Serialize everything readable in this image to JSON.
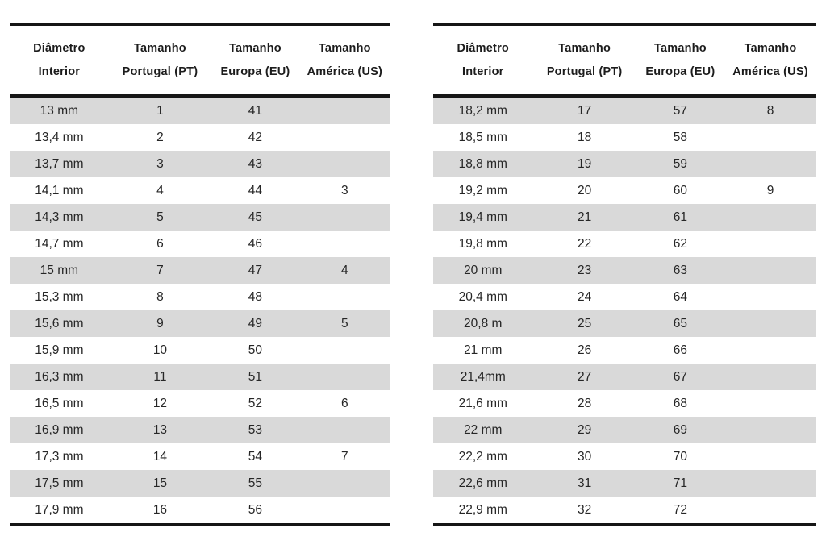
{
  "colors": {
    "stripe": "#d9d9d9",
    "rule": "#161616",
    "text": "#262626",
    "background": "#ffffff"
  },
  "left_table": {
    "headers": [
      {
        "line1": "Diâmetro",
        "line2": "Interior"
      },
      {
        "line1": "Tamanho",
        "line2": "Portugal (PT)"
      },
      {
        "line1": "Tamanho",
        "line2": "Europa (EU)"
      },
      {
        "line1": "Tamanho",
        "line2": "América (US)"
      }
    ],
    "rows": [
      [
        "13 mm",
        "1",
        "41",
        ""
      ],
      [
        "13,4 mm",
        "2",
        "42",
        ""
      ],
      [
        "13,7 mm",
        "3",
        "43",
        ""
      ],
      [
        "14,1 mm",
        "4",
        "44",
        "3"
      ],
      [
        "14,3 mm",
        "5",
        "45",
        ""
      ],
      [
        "14,7 mm",
        "6",
        "46",
        ""
      ],
      [
        "15 mm",
        "7",
        "47",
        "4"
      ],
      [
        "15,3 mm",
        "8",
        "48",
        ""
      ],
      [
        "15,6 mm",
        "9",
        "49",
        "5"
      ],
      [
        "15,9 mm",
        "10",
        "50",
        ""
      ],
      [
        "16,3 mm",
        "11",
        "51",
        ""
      ],
      [
        "16,5 mm",
        "12",
        "52",
        "6"
      ],
      [
        "16,9 mm",
        "13",
        "53",
        ""
      ],
      [
        "17,3 mm",
        "14",
        "54",
        "7"
      ],
      [
        "17,5 mm",
        "15",
        "55",
        ""
      ],
      [
        "17,9 mm",
        "16",
        "56",
        ""
      ]
    ]
  },
  "right_table": {
    "headers": [
      {
        "line1": "Diâmetro",
        "line2": "Interior"
      },
      {
        "line1": "Tamanho",
        "line2": "Portugal (PT)"
      },
      {
        "line1": "Tamanho",
        "line2": "Europa (EU)"
      },
      {
        "line1": "Tamanho",
        "line2": "América (US)"
      }
    ],
    "rows": [
      [
        "18,2 mm",
        "17",
        "57",
        "8"
      ],
      [
        "18,5 mm",
        "18",
        "58",
        ""
      ],
      [
        "18,8 mm",
        "19",
        "59",
        ""
      ],
      [
        "19,2 mm",
        "20",
        "60",
        "9"
      ],
      [
        "19,4 mm",
        "21",
        "61",
        ""
      ],
      [
        "19,8 mm",
        "22",
        "62",
        ""
      ],
      [
        "20 mm",
        "23",
        "63",
        ""
      ],
      [
        "20,4 mm",
        "24",
        "64",
        ""
      ],
      [
        "20,8 m",
        "25",
        "65",
        ""
      ],
      [
        "21 mm",
        "26",
        "66",
        ""
      ],
      [
        "21,4mm",
        "27",
        "67",
        ""
      ],
      [
        "21,6 mm",
        "28",
        "68",
        ""
      ],
      [
        "22 mm",
        "29",
        "69",
        ""
      ],
      [
        "22,2 mm",
        "30",
        "70",
        ""
      ],
      [
        "22,6 mm",
        "31",
        "71",
        ""
      ],
      [
        "22,9 mm",
        "32",
        "72",
        ""
      ]
    ]
  }
}
